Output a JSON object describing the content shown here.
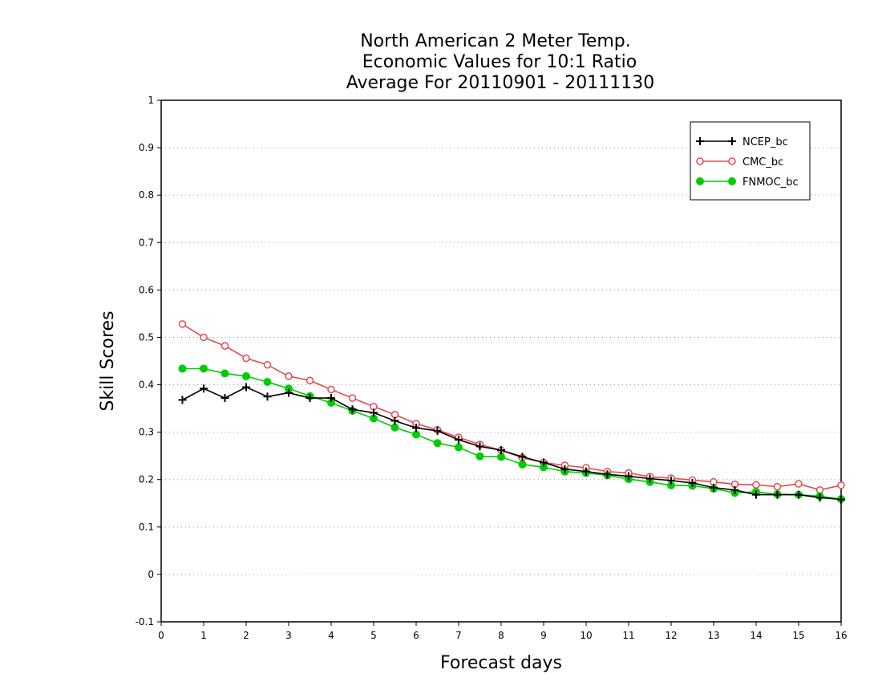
{
  "chart_data": {
    "type": "line",
    "title": [
      "North American 2 Meter Temp.",
      "Economic Values for 10:1 Ratio",
      "Average For 20110901 - 20111130"
    ],
    "xlabel": "Forecast days",
    "ylabel": "Skill Scores",
    "xlim": [
      0,
      16
    ],
    "ylim": [
      -0.1,
      1
    ],
    "xticks": [
      0,
      1,
      2,
      3,
      4,
      5,
      6,
      7,
      8,
      9,
      10,
      11,
      12,
      13,
      14,
      15,
      16
    ],
    "xtick_labels": [
      "0",
      "1",
      "2",
      "3",
      "4",
      "5",
      "6",
      "7",
      "8",
      "9",
      "10",
      "11",
      "12",
      "13",
      "14",
      "15",
      "16"
    ],
    "yticks": [
      -0.1,
      0,
      0.1,
      0.2,
      0.3,
      0.4,
      0.5,
      0.6,
      0.7,
      0.8,
      0.9,
      1
    ],
    "ytick_labels": [
      "-0.1",
      "0",
      "0.1",
      "0.2",
      "0.3",
      "0.4",
      "0.5",
      "0.6",
      "0.7",
      "0.8",
      "0.9",
      "1"
    ],
    "grid": "horizontal dotted",
    "legend_position": "top-right",
    "x": [
      0.5,
      1,
      1.5,
      2,
      2.5,
      3,
      3.5,
      4,
      4.5,
      5,
      5.5,
      6,
      6.5,
      7,
      7.5,
      8,
      8.5,
      9,
      9.5,
      10,
      10.5,
      11,
      11.5,
      12,
      12.5,
      13,
      13.5,
      14,
      14.5,
      15,
      15.5,
      16
    ],
    "series": [
      {
        "name": "NCEP_bc",
        "color": "#000000",
        "marker": "plus",
        "values": [
          0.368,
          0.392,
          0.372,
          0.395,
          0.375,
          0.383,
          0.372,
          0.372,
          0.348,
          0.341,
          0.324,
          0.309,
          0.303,
          0.284,
          0.27,
          0.262,
          0.248,
          0.236,
          0.222,
          0.217,
          0.211,
          0.207,
          0.202,
          0.198,
          0.193,
          0.183,
          0.178,
          0.168,
          0.168,
          0.168,
          0.162,
          0.158
        ]
      },
      {
        "name": "CMC_bc",
        "color": "#e8484f",
        "marker": "open-circle",
        "values": [
          0.528,
          0.5,
          0.482,
          0.456,
          0.442,
          0.418,
          0.409,
          0.39,
          0.372,
          0.354,
          0.337,
          0.318,
          0.305,
          0.289,
          0.274,
          0.262,
          0.246,
          0.236,
          0.23,
          0.225,
          0.217,
          0.214,
          0.206,
          0.203,
          0.199,
          0.195,
          0.19,
          0.189,
          0.185,
          0.191,
          0.178,
          0.188
        ]
      },
      {
        "name": "FNMOC_bc",
        "color": "#00cc00",
        "marker": "filled-circle",
        "values": [
          0.434,
          0.434,
          0.424,
          0.418,
          0.406,
          0.392,
          0.376,
          0.362,
          0.345,
          0.329,
          0.31,
          0.295,
          0.277,
          0.268,
          0.249,
          0.248,
          0.232,
          0.226,
          0.217,
          0.214,
          0.209,
          0.201,
          0.195,
          0.188,
          0.187,
          0.181,
          0.172,
          0.174,
          0.169,
          0.168,
          0.165,
          0.159
        ]
      }
    ]
  }
}
